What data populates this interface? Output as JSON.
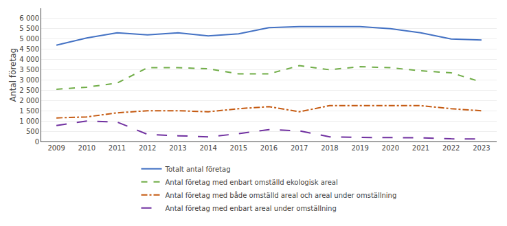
{
  "chart_data": {
    "type": "line",
    "x": [
      2009,
      2010,
      2011,
      2012,
      2013,
      2014,
      2015,
      2016,
      2017,
      2018,
      2019,
      2020,
      2021,
      2022,
      2023
    ],
    "series": [
      {
        "name": "Totalt antal företag",
        "color": "#4472c4",
        "line_style": "solid",
        "values": [
          4700,
          5050,
          5300,
          5200,
          5300,
          5150,
          5250,
          5550,
          5600,
          5600,
          5600,
          5500,
          5300,
          5000,
          4950
        ]
      },
      {
        "name": "Antal företag med enbart omställd ekologisk areal",
        "color": "#70ad47",
        "line_style": "dashed",
        "values": [
          2550,
          2650,
          2850,
          3600,
          3600,
          3550,
          3300,
          3300,
          3700,
          3500,
          3650,
          3600,
          3450,
          3350,
          2900
        ]
      },
      {
        "name": "Antal företag med både omställd areal och areal under omställning",
        "color": "#c55a11",
        "line_style": "dashdot",
        "values": [
          1150,
          1200,
          1400,
          1500,
          1500,
          1450,
          1600,
          1700,
          1450,
          1750,
          1750,
          1750,
          1750,
          1600,
          1500
        ]
      },
      {
        "name": "Antal företag med enbart areal under omställning",
        "color": "#7030a0",
        "line_style": "longdash",
        "values": [
          780,
          1000,
          950,
          350,
          280,
          230,
          380,
          580,
          520,
          230,
          200,
          200,
          180,
          130,
          120
        ]
      }
    ],
    "ylabel": "Antal företag",
    "xlim": [
      2008.5,
      2023.5
    ],
    "xticks": [
      2009,
      2010,
      2011,
      2012,
      2013,
      2014,
      2015,
      2016,
      2017,
      2018,
      2019,
      2020,
      2021,
      2022,
      2023
    ],
    "ylim": [
      0,
      6500
    ],
    "yticks": [
      0,
      500,
      {
        "value": 1000,
        "label": "1 000"
      },
      {
        "value": 1500,
        "label": "1 500"
      },
      {
        "value": 2000,
        "label": "2 000"
      },
      {
        "value": 2500,
        "label": "2 500"
      },
      {
        "value": 3000,
        "label": "3 000"
      },
      {
        "value": 3500,
        "label": "3 500"
      },
      {
        "value": 4000,
        "label": "4 000"
      },
      {
        "value": 4500,
        "label": "4 500"
      },
      {
        "value": 5000,
        "label": "5 000"
      },
      {
        "value": 5500,
        "label": "5 500"
      },
      {
        "value": 6000,
        "label": "6 000"
      }
    ],
    "grid": "y",
    "legend": "bottom"
  }
}
